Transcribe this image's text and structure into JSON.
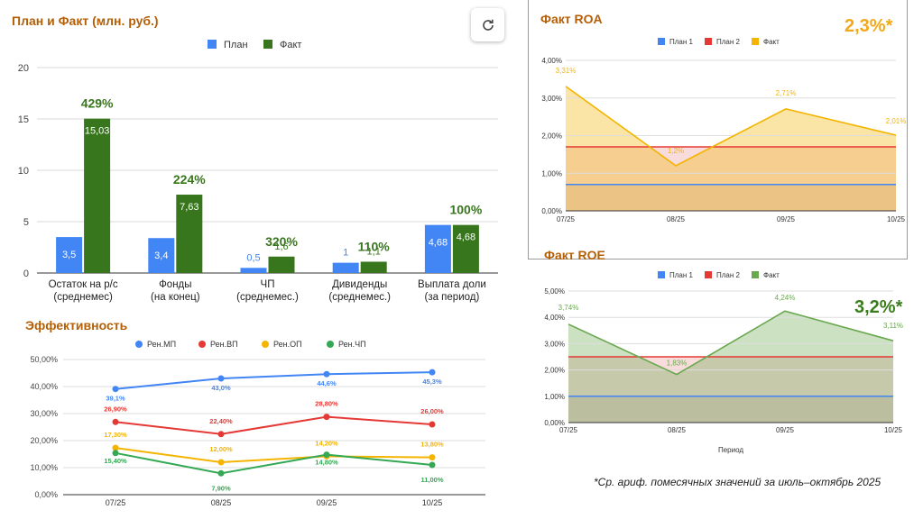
{
  "titles": {
    "bar": "План и Факт (млн. руб.)",
    "eff": "Эффективность",
    "roa": "Факт ROA",
    "roe": "Факт ROE"
  },
  "roa_big": "2,3%*",
  "roe_big": "3,2%*",
  "footnote": "*Ср. ариф. помесячных значений за июль–октябрь 2025",
  "colors": {
    "plan": "#4285f4",
    "fact": "#38761d",
    "red": "#e53935",
    "yellow": "#f4b400",
    "green": "#34a853",
    "title": "#b45f06"
  },
  "chart_data": [
    {
      "type": "bar",
      "title": "План и Факт (млн. руб.)",
      "categories": [
        [
          "Остаток на р/с",
          "(среднемес)"
        ],
        [
          "Фонды",
          "(на конец)"
        ],
        [
          "ЧП",
          "(среднемес.)"
        ],
        [
          "Дивиденды",
          "(среднемес.)"
        ],
        [
          "Выплата доли",
          "(за период)"
        ]
      ],
      "series": [
        {
          "name": "План",
          "values": [
            3.5,
            3.4,
            0.5,
            1,
            4.68
          ],
          "labels": [
            "3,5",
            "3,4",
            "0,5",
            "1",
            "4,68"
          ]
        },
        {
          "name": "Факт",
          "values": [
            15.03,
            7.63,
            1.6,
            1.1,
            4.68
          ],
          "labels": [
            "15,03",
            "7,63",
            "1,6",
            "1,1",
            "4,68"
          ]
        }
      ],
      "percent_labels": [
        "429%",
        "224%",
        "320%",
        "110%",
        "100%"
      ],
      "ylim": [
        0,
        20
      ],
      "yticks": [
        "0",
        "5",
        "10",
        "15",
        "20"
      ]
    },
    {
      "type": "line",
      "title": "Эффективность",
      "x": [
        "07/25",
        "08/25",
        "09/25",
        "10/25"
      ],
      "ylim": [
        0,
        50
      ],
      "yticks": [
        "0,00%",
        "10,00%",
        "20,00%",
        "30,00%",
        "40,00%",
        "50,00%"
      ],
      "series": [
        {
          "name": "Рен.МП",
          "values": [
            39.1,
            43.0,
            44.6,
            45.3
          ],
          "labels": [
            "39,1%",
            "43,0%",
            "44,6%",
            "45,3%"
          ]
        },
        {
          "name": "Рен.ВП",
          "values": [
            26.9,
            22.4,
            28.8,
            26.0
          ],
          "labels": [
            "26,90%",
            "22,40%",
            "28,80%",
            "26,00%"
          ]
        },
        {
          "name": "Рен.ОП",
          "values": [
            17.3,
            12.0,
            14.2,
            13.8
          ],
          "labels": [
            "17,30%",
            "12,00%",
            "14,20%",
            "13,80%"
          ]
        },
        {
          "name": "Рен.ЧП",
          "values": [
            15.4,
            7.9,
            14.8,
            11.0
          ],
          "labels": [
            "15,40%",
            "7,90%",
            "14,80%",
            "11,00%"
          ]
        }
      ]
    },
    {
      "type": "area",
      "title": "Факт ROA",
      "x": [
        "07/25",
        "08/25",
        "09/25",
        "10/25"
      ],
      "ylim": [
        0,
        4
      ],
      "yticks": [
        "0,00%",
        "1,00%",
        "2,00%",
        "3,00%",
        "4,00%"
      ],
      "series": [
        {
          "name": "План 1",
          "values": [
            0.7,
            0.7,
            0.7,
            0.7
          ]
        },
        {
          "name": "План 2",
          "values": [
            1.7,
            1.7,
            1.7,
            1.7
          ]
        },
        {
          "name": "Факт",
          "values": [
            3.31,
            1.2,
            2.71,
            2.01
          ],
          "labels": [
            "3,31%",
            "1,2%",
            "2,71%",
            "2,01%"
          ]
        }
      ]
    },
    {
      "type": "area",
      "title": "Факт ROE",
      "x": [
        "07/25",
        "08/25",
        "09/25",
        "10/25"
      ],
      "xlabel": "Период",
      "ylim": [
        0,
        5
      ],
      "yticks": [
        "0,00%",
        "1,00%",
        "2,00%",
        "3,00%",
        "4,00%",
        "5,00%"
      ],
      "series": [
        {
          "name": "План 1",
          "values": [
            1.0,
            1.0,
            1.0,
            1.0
          ]
        },
        {
          "name": "План 2",
          "values": [
            2.5,
            2.5,
            2.5,
            2.5
          ]
        },
        {
          "name": "Факт",
          "values": [
            3.74,
            1.83,
            4.24,
            3.11
          ],
          "labels": [
            "3,74%",
            "1,83%",
            "4,24%",
            "3,11%"
          ]
        }
      ]
    }
  ]
}
